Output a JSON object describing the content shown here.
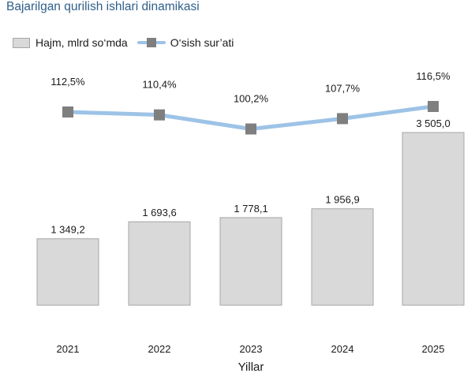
{
  "title": "Bajarilgan qurilish ishlari dinamikasi",
  "legend": {
    "bar_label": "Hajm, mlrd so‘mda",
    "line_label": "O‘sish sur’ati"
  },
  "colors": {
    "title": "#2e5f8a",
    "bar_fill": "#d9d9d9",
    "bar_stroke": "#a6a6a6",
    "line": "#9dc3e6",
    "marker": "#7f7f7f",
    "text": "#1a1a1a"
  },
  "chart_data": {
    "type": "bar",
    "title": "Bajarilgan qurilish ishlari dinamikasi",
    "xlabel": "Yillar",
    "ylabel": "",
    "categories": [
      "2021",
      "2022",
      "2023",
      "2024",
      "2025"
    ],
    "series": [
      {
        "name": "Hajm, mlrd so‘mda",
        "type": "bar",
        "values": [
          1349.2,
          1693.6,
          1778.1,
          1956.9,
          3505.0
        ],
        "labels": [
          "1 349,2",
          "1 693,6",
          "1 778,1",
          "1 956,9",
          "3 505,0"
        ]
      },
      {
        "name": "O‘sish sur’ati",
        "type": "line",
        "values": [
          112.5,
          110.4,
          100.2,
          107.7,
          116.5
        ],
        "labels": [
          "112,5%",
          "110,4%",
          "100,2%",
          "107,7%",
          "116,5%"
        ]
      }
    ],
    "legend_position": "top-left",
    "grid": false
  }
}
